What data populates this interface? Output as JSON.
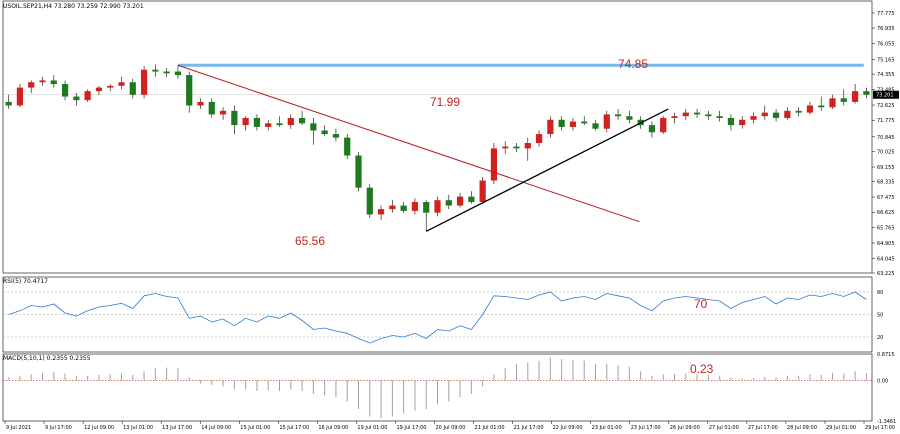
{
  "header": {
    "symbol_line": "USOIL.SEP21,H4  73.280 73.259 72.990 73.201",
    "rsi_label": "RSI(5) 70.4717",
    "macd_label": "MACD(5,10,1) 0.2355 0.2355"
  },
  "annotations": {
    "high": "74.85",
    "mid": "71.99",
    "low": "65.56",
    "rsi_value": "70",
    "macd_value": "0.23"
  },
  "colors": {
    "bull": "#d3211d",
    "bear": "#1f7a1f",
    "trend_down": "#b01e1e",
    "trend_up": "#000000",
    "level_line": "#74b9e8",
    "rsi_line": "#2a7bd6",
    "macd_hist": "#a0a0a0",
    "annotation": "#c0281e"
  },
  "chart_data": [
    {
      "type": "candlestick",
      "title": "USOIL.SEP21,H4",
      "ylim": [
        63.225,
        77.775
      ],
      "y_ticks": [
        "77.775",
        "76.935",
        "76.055",
        "75.165",
        "74.355",
        "73.485",
        "72.625",
        "71.775",
        "70.845",
        "70.025",
        "69.155",
        "68.335",
        "67.475",
        "66.625",
        "65.765",
        "64.905",
        "64.045",
        "63.225"
      ],
      "x_ticks": [
        "9 Jul 2021",
        "9 Jul 17:00",
        "12 Jul 09:00",
        "13 Jul 01:00",
        "13 Jul 17:00",
        "14 Jul 09:00",
        "15 Jul 01:00",
        "15 Jul 17:00",
        "16 Jul 09:00",
        "19 Jul 01:00",
        "19 Jul 17:00",
        "20 Jul 09:00",
        "21 Jul 01:00",
        "21 Jul 17:00",
        "22 Jul 09:00",
        "23 Jul 01:00",
        "23 Jul 17:00",
        "26 Jul 09:00",
        "27 Jul 01:00",
        "27 Jul 17:00",
        "28 Jul 09:00",
        "29 Jul 01:00",
        "29 Jul 17:00"
      ],
      "current_price": "73.201",
      "candles": [
        {
          "o": 72.8,
          "h": 73.2,
          "l": 72.4,
          "c": 72.6
        },
        {
          "o": 72.6,
          "h": 73.8,
          "l": 72.5,
          "c": 73.6
        },
        {
          "o": 73.6,
          "h": 74.0,
          "l": 73.3,
          "c": 73.9
        },
        {
          "o": 73.9,
          "h": 74.2,
          "l": 73.7,
          "c": 74.0
        },
        {
          "o": 74.0,
          "h": 74.3,
          "l": 73.6,
          "c": 73.8
        },
        {
          "o": 73.8,
          "h": 74.0,
          "l": 72.9,
          "c": 73.1
        },
        {
          "o": 73.1,
          "h": 73.3,
          "l": 72.6,
          "c": 72.9
        },
        {
          "o": 72.9,
          "h": 73.5,
          "l": 72.8,
          "c": 73.4
        },
        {
          "o": 73.4,
          "h": 73.7,
          "l": 73.2,
          "c": 73.6
        },
        {
          "o": 73.6,
          "h": 73.8,
          "l": 73.4,
          "c": 73.7
        },
        {
          "o": 73.7,
          "h": 74.2,
          "l": 73.5,
          "c": 73.9
        },
        {
          "o": 73.9,
          "h": 74.1,
          "l": 73.0,
          "c": 73.2
        },
        {
          "o": 73.2,
          "h": 74.8,
          "l": 73.0,
          "c": 74.6
        },
        {
          "o": 74.6,
          "h": 74.9,
          "l": 74.2,
          "c": 74.5
        },
        {
          "o": 74.5,
          "h": 74.7,
          "l": 74.2,
          "c": 74.4
        },
        {
          "o": 74.5,
          "h": 74.85,
          "l": 74.1,
          "c": 74.3
        },
        {
          "o": 74.3,
          "h": 74.5,
          "l": 72.2,
          "c": 72.6
        },
        {
          "o": 72.6,
          "h": 73.0,
          "l": 72.4,
          "c": 72.8
        },
        {
          "o": 72.8,
          "h": 73.0,
          "l": 71.9,
          "c": 72.1
        },
        {
          "o": 72.1,
          "h": 72.5,
          "l": 71.8,
          "c": 72.3
        },
        {
          "o": 72.3,
          "h": 72.6,
          "l": 71.0,
          "c": 71.5
        },
        {
          "o": 71.5,
          "h": 72.0,
          "l": 71.2,
          "c": 71.9
        },
        {
          "o": 71.9,
          "h": 72.1,
          "l": 71.2,
          "c": 71.4
        },
        {
          "o": 71.4,
          "h": 71.8,
          "l": 71.2,
          "c": 71.6
        },
        {
          "o": 71.6,
          "h": 72.0,
          "l": 71.4,
          "c": 71.5
        },
        {
          "o": 71.5,
          "h": 72.1,
          "l": 71.3,
          "c": 71.9
        },
        {
          "o": 71.9,
          "h": 72.3,
          "l": 71.5,
          "c": 71.6
        },
        {
          "o": 71.6,
          "h": 71.9,
          "l": 70.4,
          "c": 71.2
        },
        {
          "o": 71.2,
          "h": 71.5,
          "l": 70.9,
          "c": 71.0
        },
        {
          "o": 71.0,
          "h": 71.3,
          "l": 70.6,
          "c": 70.8
        },
        {
          "o": 70.8,
          "h": 71.0,
          "l": 69.6,
          "c": 69.8
        },
        {
          "o": 69.8,
          "h": 70.0,
          "l": 67.8,
          "c": 68.0
        },
        {
          "o": 68.0,
          "h": 68.2,
          "l": 66.3,
          "c": 66.5
        },
        {
          "o": 66.5,
          "h": 67.0,
          "l": 66.2,
          "c": 66.8
        },
        {
          "o": 66.8,
          "h": 67.3,
          "l": 66.6,
          "c": 67.0
        },
        {
          "o": 67.0,
          "h": 67.2,
          "l": 66.6,
          "c": 66.7
        },
        {
          "o": 66.7,
          "h": 67.4,
          "l": 66.5,
          "c": 67.2
        },
        {
          "o": 67.2,
          "h": 67.3,
          "l": 65.56,
          "c": 66.6
        },
        {
          "o": 66.6,
          "h": 67.5,
          "l": 66.4,
          "c": 67.3
        },
        {
          "o": 67.3,
          "h": 67.6,
          "l": 66.8,
          "c": 67.0
        },
        {
          "o": 67.0,
          "h": 67.7,
          "l": 66.9,
          "c": 67.5
        },
        {
          "o": 67.5,
          "h": 67.8,
          "l": 67.1,
          "c": 67.2
        },
        {
          "o": 67.2,
          "h": 68.6,
          "l": 67.1,
          "c": 68.4
        },
        {
          "o": 68.4,
          "h": 70.5,
          "l": 68.2,
          "c": 70.2
        },
        {
          "o": 70.2,
          "h": 70.6,
          "l": 69.9,
          "c": 70.3
        },
        {
          "o": 70.3,
          "h": 70.5,
          "l": 70.0,
          "c": 70.2
        },
        {
          "o": 70.2,
          "h": 70.8,
          "l": 69.5,
          "c": 70.5
        },
        {
          "o": 70.5,
          "h": 71.2,
          "l": 70.3,
          "c": 71.0
        },
        {
          "o": 71.0,
          "h": 71.99,
          "l": 70.8,
          "c": 71.8
        },
        {
          "o": 71.8,
          "h": 72.0,
          "l": 71.2,
          "c": 71.4
        },
        {
          "o": 71.4,
          "h": 71.9,
          "l": 71.2,
          "c": 71.7
        },
        {
          "o": 71.7,
          "h": 72.0,
          "l": 71.5,
          "c": 71.6
        },
        {
          "o": 71.6,
          "h": 71.8,
          "l": 71.2,
          "c": 71.3
        },
        {
          "o": 71.3,
          "h": 72.3,
          "l": 71.1,
          "c": 72.1
        },
        {
          "o": 72.1,
          "h": 72.4,
          "l": 71.8,
          "c": 72.0
        },
        {
          "o": 72.0,
          "h": 72.3,
          "l": 71.6,
          "c": 71.8
        },
        {
          "o": 71.8,
          "h": 72.0,
          "l": 71.3,
          "c": 71.5
        },
        {
          "o": 71.5,
          "h": 71.7,
          "l": 70.8,
          "c": 71.1
        },
        {
          "o": 71.1,
          "h": 72.0,
          "l": 71.0,
          "c": 71.9
        },
        {
          "o": 71.9,
          "h": 72.2,
          "l": 71.6,
          "c": 72.0
        },
        {
          "o": 72.0,
          "h": 72.4,
          "l": 71.8,
          "c": 72.2
        },
        {
          "o": 72.2,
          "h": 72.4,
          "l": 71.9,
          "c": 72.1
        },
        {
          "o": 72.1,
          "h": 72.3,
          "l": 71.8,
          "c": 72.0
        },
        {
          "o": 72.0,
          "h": 72.3,
          "l": 71.7,
          "c": 71.9
        },
        {
          "o": 71.9,
          "h": 72.1,
          "l": 71.2,
          "c": 71.5
        },
        {
          "o": 71.5,
          "h": 72.0,
          "l": 71.3,
          "c": 71.8
        },
        {
          "o": 71.8,
          "h": 72.2,
          "l": 71.6,
          "c": 72.0
        },
        {
          "o": 72.0,
          "h": 72.6,
          "l": 71.8,
          "c": 72.2
        },
        {
          "o": 72.2,
          "h": 72.4,
          "l": 71.7,
          "c": 71.9
        },
        {
          "o": 71.9,
          "h": 72.5,
          "l": 71.8,
          "c": 72.3
        },
        {
          "o": 72.3,
          "h": 72.5,
          "l": 72.0,
          "c": 72.2
        },
        {
          "o": 72.2,
          "h": 72.8,
          "l": 72.1,
          "c": 72.6
        },
        {
          "o": 72.6,
          "h": 73.1,
          "l": 72.3,
          "c": 72.5
        },
        {
          "o": 72.5,
          "h": 73.2,
          "l": 72.4,
          "c": 73.0
        },
        {
          "o": 73.0,
          "h": 73.5,
          "l": 72.6,
          "c": 72.8
        },
        {
          "o": 72.8,
          "h": 73.8,
          "l": 72.7,
          "c": 73.4
        },
        {
          "o": 73.4,
          "h": 73.6,
          "l": 73.0,
          "c": 73.2
        }
      ]
    },
    {
      "type": "line",
      "title": "RSI(5) 70.4717",
      "ylim": [
        0,
        100
      ],
      "y_ticks": [
        "80",
        "50",
        "20"
      ],
      "levels": [
        80,
        50,
        20
      ],
      "values": [
        50,
        55,
        62,
        60,
        64,
        52,
        48,
        55,
        60,
        62,
        65,
        58,
        75,
        78,
        74,
        72,
        45,
        48,
        40,
        44,
        35,
        45,
        40,
        48,
        45,
        52,
        42,
        30,
        32,
        28,
        25,
        18,
        12,
        18,
        22,
        20,
        25,
        18,
        30,
        28,
        35,
        30,
        50,
        75,
        74,
        72,
        70,
        76,
        80,
        68,
        72,
        74,
        70,
        78,
        75,
        72,
        62,
        55,
        68,
        72,
        74,
        72,
        70,
        68,
        58,
        66,
        70,
        74,
        64,
        72,
        70,
        76,
        74,
        78,
        74,
        80,
        70
      ]
    },
    {
      "type": "bar",
      "title": "MACD(5,10,1) 0.2355 0.2355",
      "ylim": [
        -1.3461,
        0.8715
      ],
      "y_ticks": [
        "0.8715",
        "0.00",
        "-1.3461"
      ],
      "values": [
        0.1,
        0.15,
        0.2,
        0.25,
        0.28,
        0.22,
        0.15,
        0.15,
        0.18,
        0.2,
        0.22,
        0.18,
        0.3,
        0.4,
        0.42,
        0.4,
        0.1,
        -0.1,
        -0.15,
        -0.2,
        -0.3,
        -0.3,
        -0.35,
        -0.32,
        -0.35,
        -0.3,
        -0.35,
        -0.45,
        -0.5,
        -0.55,
        -0.7,
        -0.95,
        -1.2,
        -1.25,
        -1.2,
        -1.1,
        -1.0,
        -0.95,
        -0.8,
        -0.7,
        -0.55,
        -0.45,
        -0.2,
        0.2,
        0.4,
        0.55,
        0.6,
        0.65,
        0.75,
        0.7,
        0.68,
        0.65,
        0.55,
        0.55,
        0.5,
        0.45,
        0.3,
        0.15,
        0.2,
        0.2,
        0.22,
        0.2,
        0.18,
        0.15,
        0.08,
        0.05,
        0.08,
        0.12,
        0.1,
        0.15,
        0.15,
        0.2,
        0.18,
        0.25,
        0.22,
        0.3,
        0.24
      ]
    }
  ]
}
